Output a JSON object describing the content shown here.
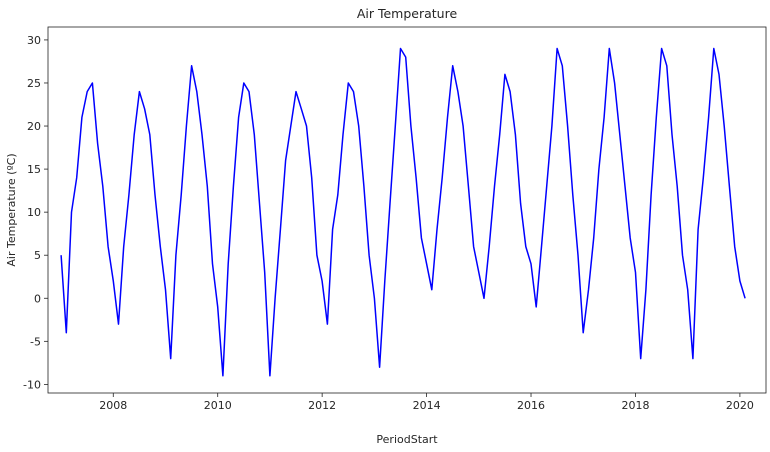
{
  "chart_data": {
    "type": "line",
    "title": "Air Temperature",
    "xlabel": "PeriodStart",
    "ylabel": "Air Temperature (ºC)",
    "xlim": [
      2006.75,
      2020.5
    ],
    "ylim": [
      -11,
      31.5
    ],
    "x_ticks": [
      2008,
      2010,
      2012,
      2014,
      2016,
      2018,
      2020
    ],
    "x_tick_labels": [
      "2008",
      "2010",
      "2012",
      "2014",
      "2016",
      "2018",
      "2020"
    ],
    "y_ticks": [
      -10,
      -5,
      0,
      5,
      10,
      15,
      20,
      25,
      30
    ],
    "y_tick_labels": [
      "-10",
      "-5",
      "0",
      "5",
      "10",
      "15",
      "20",
      "25",
      "30"
    ],
    "grid": false,
    "legend": "none",
    "series": [
      {
        "color": "#0000ff",
        "x": [
          2007.0,
          2007.1,
          2007.2,
          2007.3,
          2007.4,
          2007.5,
          2007.6,
          2007.7,
          2007.8,
          2007.9,
          2008.0,
          2008.1,
          2008.2,
          2008.3,
          2008.4,
          2008.5,
          2008.6,
          2008.7,
          2008.8,
          2008.9,
          2009.0,
          2009.1,
          2009.2,
          2009.3,
          2009.4,
          2009.5,
          2009.6,
          2009.7,
          2009.8,
          2009.9,
          2010.0,
          2010.1,
          2010.2,
          2010.3,
          2010.4,
          2010.5,
          2010.6,
          2010.7,
          2010.8,
          2010.9,
          2011.0,
          2011.1,
          2011.2,
          2011.3,
          2011.4,
          2011.5,
          2011.6,
          2011.7,
          2011.8,
          2011.9,
          2012.0,
          2012.1,
          2012.2,
          2012.3,
          2012.4,
          2012.5,
          2012.6,
          2012.7,
          2012.8,
          2012.9,
          2013.0,
          2013.1,
          2013.2,
          2013.3,
          2013.4,
          2013.5,
          2013.6,
          2013.7,
          2013.8,
          2013.9,
          2014.0,
          2014.1,
          2014.2,
          2014.3,
          2014.4,
          2014.5,
          2014.6,
          2014.7,
          2014.8,
          2014.9,
          2015.0,
          2015.1,
          2015.2,
          2015.3,
          2015.4,
          2015.5,
          2015.6,
          2015.7,
          2015.8,
          2015.9,
          2016.0,
          2016.1,
          2016.2,
          2016.3,
          2016.4,
          2016.5,
          2016.6,
          2016.7,
          2016.8,
          2016.9,
          2017.0,
          2017.1,
          2017.2,
          2017.3,
          2017.4,
          2017.5,
          2017.6,
          2017.7,
          2017.8,
          2017.9,
          2018.0,
          2018.1,
          2018.2,
          2018.3,
          2018.4,
          2018.5,
          2018.6,
          2018.7,
          2018.8,
          2018.9,
          2019.0,
          2019.1,
          2019.2,
          2019.3,
          2019.4,
          2019.5,
          2019.6,
          2019.7,
          2019.8,
          2019.9,
          2020.0,
          2020.1
        ],
        "y": [
          5,
          -4,
          10,
          14,
          21,
          24,
          25,
          18,
          13,
          6,
          2,
          -3,
          6,
          12,
          19,
          24,
          22,
          19,
          12,
          6,
          1,
          -7,
          5,
          12,
          20,
          27,
          24,
          19,
          13,
          4,
          -1,
          -9,
          4,
          13,
          21,
          25,
          24,
          19,
          11,
          3,
          -9,
          0,
          8,
          16,
          20,
          24,
          22,
          20,
          14,
          5,
          2,
          -3,
          8,
          12,
          19,
          25,
          24,
          20,
          13,
          5,
          0,
          -8,
          2,
          11,
          20,
          29,
          28,
          20,
          14,
          7,
          4,
          1,
          8,
          14,
          21,
          27,
          24,
          20,
          13,
          6,
          3,
          0,
          6,
          13,
          19,
          26,
          24,
          19,
          11,
          6,
          4,
          -1,
          6,
          13,
          20,
          29,
          27,
          20,
          12,
          5,
          -4,
          1,
          7,
          15,
          21,
          29,
          25,
          19,
          13,
          7,
          3,
          -7,
          1,
          12,
          21,
          29,
          27,
          19,
          13,
          5,
          1,
          -7,
          8,
          14,
          21,
          29,
          26,
          20,
          13,
          6,
          2,
          0
        ]
      }
    ]
  }
}
